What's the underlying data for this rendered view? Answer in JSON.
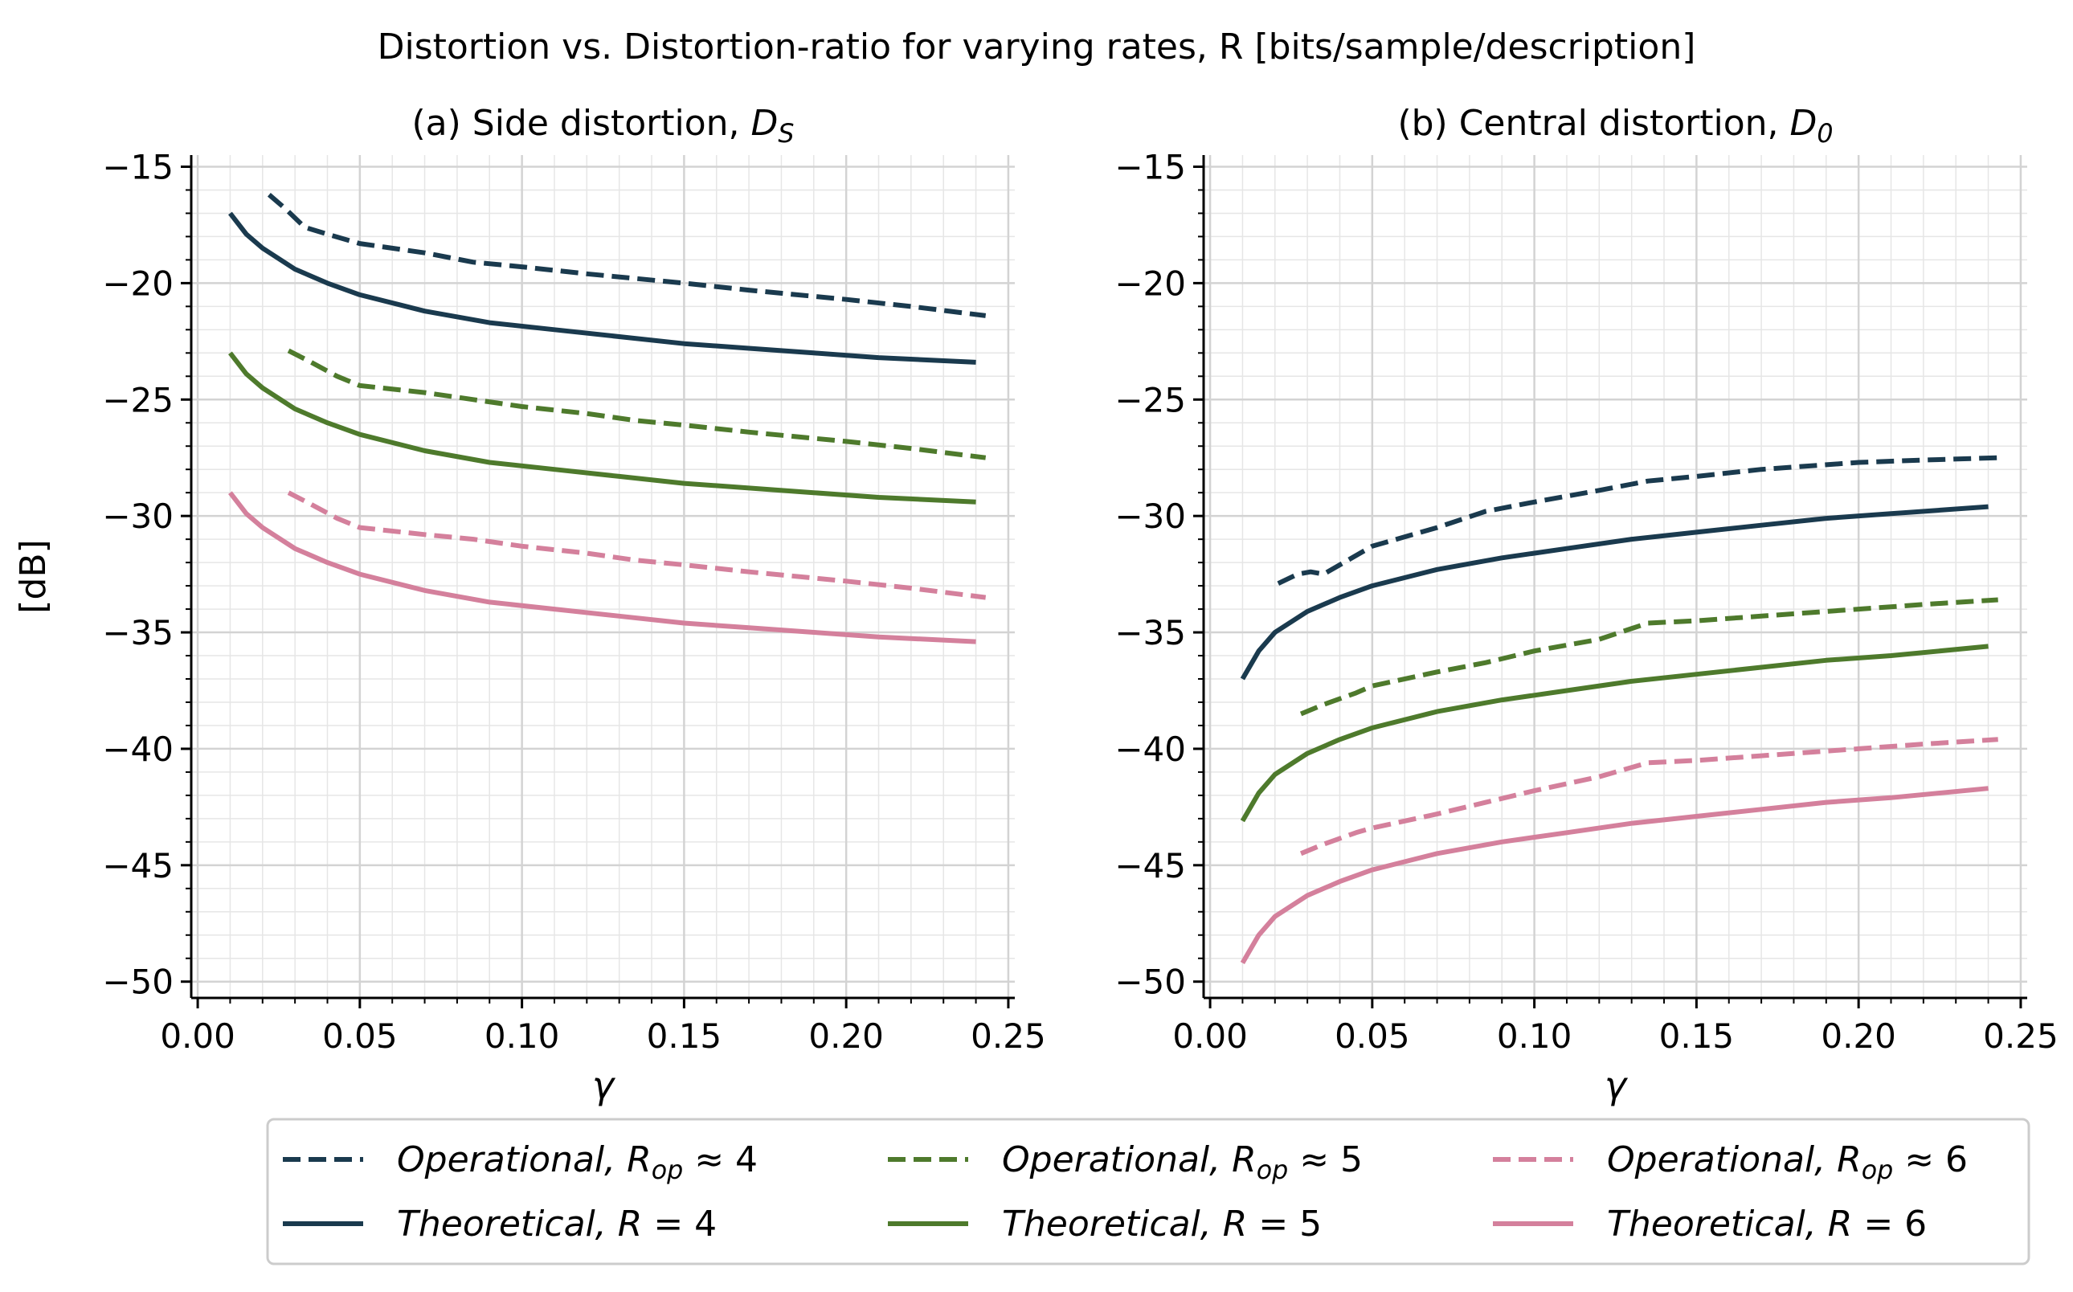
{
  "chart_data": {
    "suptitle": "Distortion vs. Distortion-ratio for varying rates, R [bits/sample/description]",
    "colors": {
      "R4": "#1a3a4e",
      "R5": "#4e7a2c",
      "R6": "#d4809c",
      "grid": "#d3d3d3"
    },
    "legend": {
      "placement": "bottom-center",
      "columns": 3,
      "entries": [
        {
          "label": "Operational, R_op ≈ 4",
          "color": "#1a3a4e",
          "style": "dashed"
        },
        {
          "label": "Theoretical, R = 4",
          "color": "#1a3a4e",
          "style": "solid"
        },
        {
          "label": "Operational, R_op ≈ 5",
          "color": "#4e7a2c",
          "style": "dashed"
        },
        {
          "label": "Theoretical, R = 5",
          "color": "#4e7a2c",
          "style": "solid"
        },
        {
          "label": "Operational, R_op ≈ 6",
          "color": "#d4809c",
          "style": "dashed"
        },
        {
          "label": "Theoretical, R = 6",
          "color": "#d4809c",
          "style": "solid"
        }
      ]
    },
    "panels": [
      {
        "type": "line",
        "title": "(a) Side distortion, D_S",
        "xlabel": "γ",
        "ylabel": "[dB]",
        "xlim": [
          -0.002,
          0.252
        ],
        "ylim": [
          -50.7,
          -14.5
        ],
        "xticks": [
          0.0,
          0.05,
          0.1,
          0.15,
          0.2,
          0.25
        ],
        "xtick_labels": [
          "0.00",
          "0.05",
          "0.10",
          "0.15",
          "0.20",
          "0.25"
        ],
        "yticks": [
          -15,
          -20,
          -25,
          -30,
          -35,
          -40,
          -45,
          -50
        ],
        "ytick_labels": [
          "−15",
          "−20",
          "−25",
          "−30",
          "−35",
          "−40",
          "−45",
          "−50"
        ],
        "series": [
          {
            "name": "Operational, R_op ≈ 4",
            "style": "dashed",
            "color": "#1a3a4e",
            "x": [
              0.022,
              0.027,
              0.033,
              0.04,
              0.05,
              0.07,
              0.085,
              0.1,
              0.12,
              0.135,
              0.15,
              0.17,
              0.2,
              0.22,
              0.243
            ],
            "y": [
              -16.2,
              -16.8,
              -17.6,
              -17.9,
              -18.3,
              -18.7,
              -19.1,
              -19.3,
              -19.6,
              -19.8,
              -20.0,
              -20.3,
              -20.7,
              -21.0,
              -21.4
            ]
          },
          {
            "name": "Theoretical, R = 4",
            "style": "solid",
            "color": "#1a3a4e",
            "x": [
              0.01,
              0.015,
              0.02,
              0.03,
              0.04,
              0.05,
              0.07,
              0.09,
              0.11,
              0.13,
              0.15,
              0.17,
              0.19,
              0.21,
              0.24
            ],
            "y": [
              -17.0,
              -17.9,
              -18.5,
              -19.4,
              -20.0,
              -20.5,
              -21.2,
              -21.7,
              -22.0,
              -22.3,
              -22.6,
              -22.8,
              -23.0,
              -23.2,
              -23.4
            ]
          },
          {
            "name": "Operational, R_op ≈ 5",
            "style": "dashed",
            "color": "#4e7a2c",
            "x": [
              0.028,
              0.035,
              0.043,
              0.05,
              0.07,
              0.085,
              0.1,
              0.12,
              0.135,
              0.15,
              0.17,
              0.2,
              0.22,
              0.243
            ],
            "y": [
              -22.9,
              -23.4,
              -24.0,
              -24.4,
              -24.7,
              -25.0,
              -25.3,
              -25.6,
              -25.9,
              -26.1,
              -26.4,
              -26.8,
              -27.1,
              -27.5
            ]
          },
          {
            "name": "Theoretical, R = 5",
            "style": "solid",
            "color": "#4e7a2c",
            "x": [
              0.01,
              0.015,
              0.02,
              0.03,
              0.04,
              0.05,
              0.07,
              0.09,
              0.11,
              0.13,
              0.15,
              0.17,
              0.19,
              0.21,
              0.24
            ],
            "y": [
              -23.0,
              -23.9,
              -24.5,
              -25.4,
              -26.0,
              -26.5,
              -27.2,
              -27.7,
              -28.0,
              -28.3,
              -28.6,
              -28.8,
              -29.0,
              -29.2,
              -29.4
            ]
          },
          {
            "name": "Operational, R_op ≈ 6",
            "style": "dashed",
            "color": "#d4809c",
            "x": [
              0.028,
              0.035,
              0.043,
              0.05,
              0.07,
              0.085,
              0.1,
              0.12,
              0.135,
              0.15,
              0.17,
              0.2,
              0.22,
              0.243
            ],
            "y": [
              -29.0,
              -29.5,
              -30.1,
              -30.5,
              -30.8,
              -31.0,
              -31.3,
              -31.6,
              -31.9,
              -32.1,
              -32.4,
              -32.8,
              -33.1,
              -33.5
            ]
          },
          {
            "name": "Theoretical, R = 6",
            "style": "solid",
            "color": "#d4809c",
            "x": [
              0.01,
              0.015,
              0.02,
              0.03,
              0.04,
              0.05,
              0.07,
              0.09,
              0.11,
              0.13,
              0.15,
              0.17,
              0.19,
              0.21,
              0.24
            ],
            "y": [
              -29.0,
              -29.9,
              -30.5,
              -31.4,
              -32.0,
              -32.5,
              -33.2,
              -33.7,
              -34.0,
              -34.3,
              -34.6,
              -34.8,
              -35.0,
              -35.2,
              -35.4
            ]
          }
        ]
      },
      {
        "type": "line",
        "title": "(b) Central distortion, D_0",
        "xlabel": "γ",
        "ylabel": "",
        "xlim": [
          -0.002,
          0.252
        ],
        "ylim": [
          -50.7,
          -14.5
        ],
        "xticks": [
          0.0,
          0.05,
          0.1,
          0.15,
          0.2,
          0.25
        ],
        "xtick_labels": [
          "0.00",
          "0.05",
          "0.10",
          "0.15",
          "0.20",
          "0.25"
        ],
        "yticks": [
          -15,
          -20,
          -25,
          -30,
          -35,
          -40,
          -45,
          -50
        ],
        "ytick_labels": [
          "−15",
          "−20",
          "−25",
          "−30",
          "−35",
          "−40",
          "−45",
          "−50"
        ],
        "series": [
          {
            "name": "Operational, R_op ≈ 4",
            "style": "dashed",
            "color": "#1a3a4e",
            "x": [
              0.021,
              0.027,
              0.031,
              0.035,
              0.04,
              0.05,
              0.07,
              0.085,
              0.1,
              0.12,
              0.135,
              0.15,
              0.17,
              0.2,
              0.22,
              0.243
            ],
            "y": [
              -32.9,
              -32.5,
              -32.4,
              -32.5,
              -32.1,
              -31.3,
              -30.5,
              -29.8,
              -29.4,
              -28.9,
              -28.5,
              -28.3,
              -28.0,
              -27.7,
              -27.6,
              -27.5
            ]
          },
          {
            "name": "Theoretical, R = 4",
            "style": "solid",
            "color": "#1a3a4e",
            "x": [
              0.01,
              0.015,
              0.02,
              0.03,
              0.04,
              0.05,
              0.07,
              0.09,
              0.11,
              0.13,
              0.15,
              0.17,
              0.19,
              0.21,
              0.24
            ],
            "y": [
              -37.0,
              -35.8,
              -35.0,
              -34.1,
              -33.5,
              -33.0,
              -32.3,
              -31.8,
              -31.4,
              -31.0,
              -30.7,
              -30.4,
              -30.1,
              -29.9,
              -29.6
            ]
          },
          {
            "name": "Operational, R_op ≈ 5",
            "style": "dashed",
            "color": "#4e7a2c",
            "x": [
              0.028,
              0.035,
              0.045,
              0.05,
              0.07,
              0.085,
              0.1,
              0.12,
              0.135,
              0.15,
              0.17,
              0.2,
              0.22,
              0.243
            ],
            "y": [
              -38.5,
              -38.1,
              -37.6,
              -37.3,
              -36.7,
              -36.3,
              -35.8,
              -35.3,
              -34.6,
              -34.5,
              -34.3,
              -34.0,
              -33.8,
              -33.6
            ]
          },
          {
            "name": "Theoretical, R = 5",
            "style": "solid",
            "color": "#4e7a2c",
            "x": [
              0.01,
              0.015,
              0.02,
              0.03,
              0.04,
              0.05,
              0.07,
              0.09,
              0.11,
              0.13,
              0.15,
              0.17,
              0.19,
              0.21,
              0.24
            ],
            "y": [
              -43.1,
              -41.9,
              -41.1,
              -40.2,
              -39.6,
              -39.1,
              -38.4,
              -37.9,
              -37.5,
              -37.1,
              -36.8,
              -36.5,
              -36.2,
              -36.0,
              -35.6
            ]
          },
          {
            "name": "Operational, R_op ≈ 6",
            "style": "dashed",
            "color": "#d4809c",
            "x": [
              0.028,
              0.035,
              0.045,
              0.05,
              0.07,
              0.085,
              0.1,
              0.12,
              0.135,
              0.15,
              0.17,
              0.2,
              0.22,
              0.243
            ],
            "y": [
              -44.5,
              -44.1,
              -43.6,
              -43.4,
              -42.8,
              -42.3,
              -41.8,
              -41.2,
              -40.6,
              -40.5,
              -40.3,
              -40.0,
              -39.8,
              -39.6
            ]
          },
          {
            "name": "Theoretical, R = 6",
            "style": "solid",
            "color": "#d4809c",
            "x": [
              0.01,
              0.015,
              0.02,
              0.03,
              0.04,
              0.05,
              0.07,
              0.09,
              0.11,
              0.13,
              0.15,
              0.17,
              0.19,
              0.21,
              0.24
            ],
            "y": [
              -49.2,
              -48.0,
              -47.2,
              -46.3,
              -45.7,
              -45.2,
              -44.5,
              -44.0,
              -43.6,
              -43.2,
              -42.9,
              -42.6,
              -42.3,
              -42.1,
              -41.7
            ]
          }
        ]
      }
    ]
  }
}
